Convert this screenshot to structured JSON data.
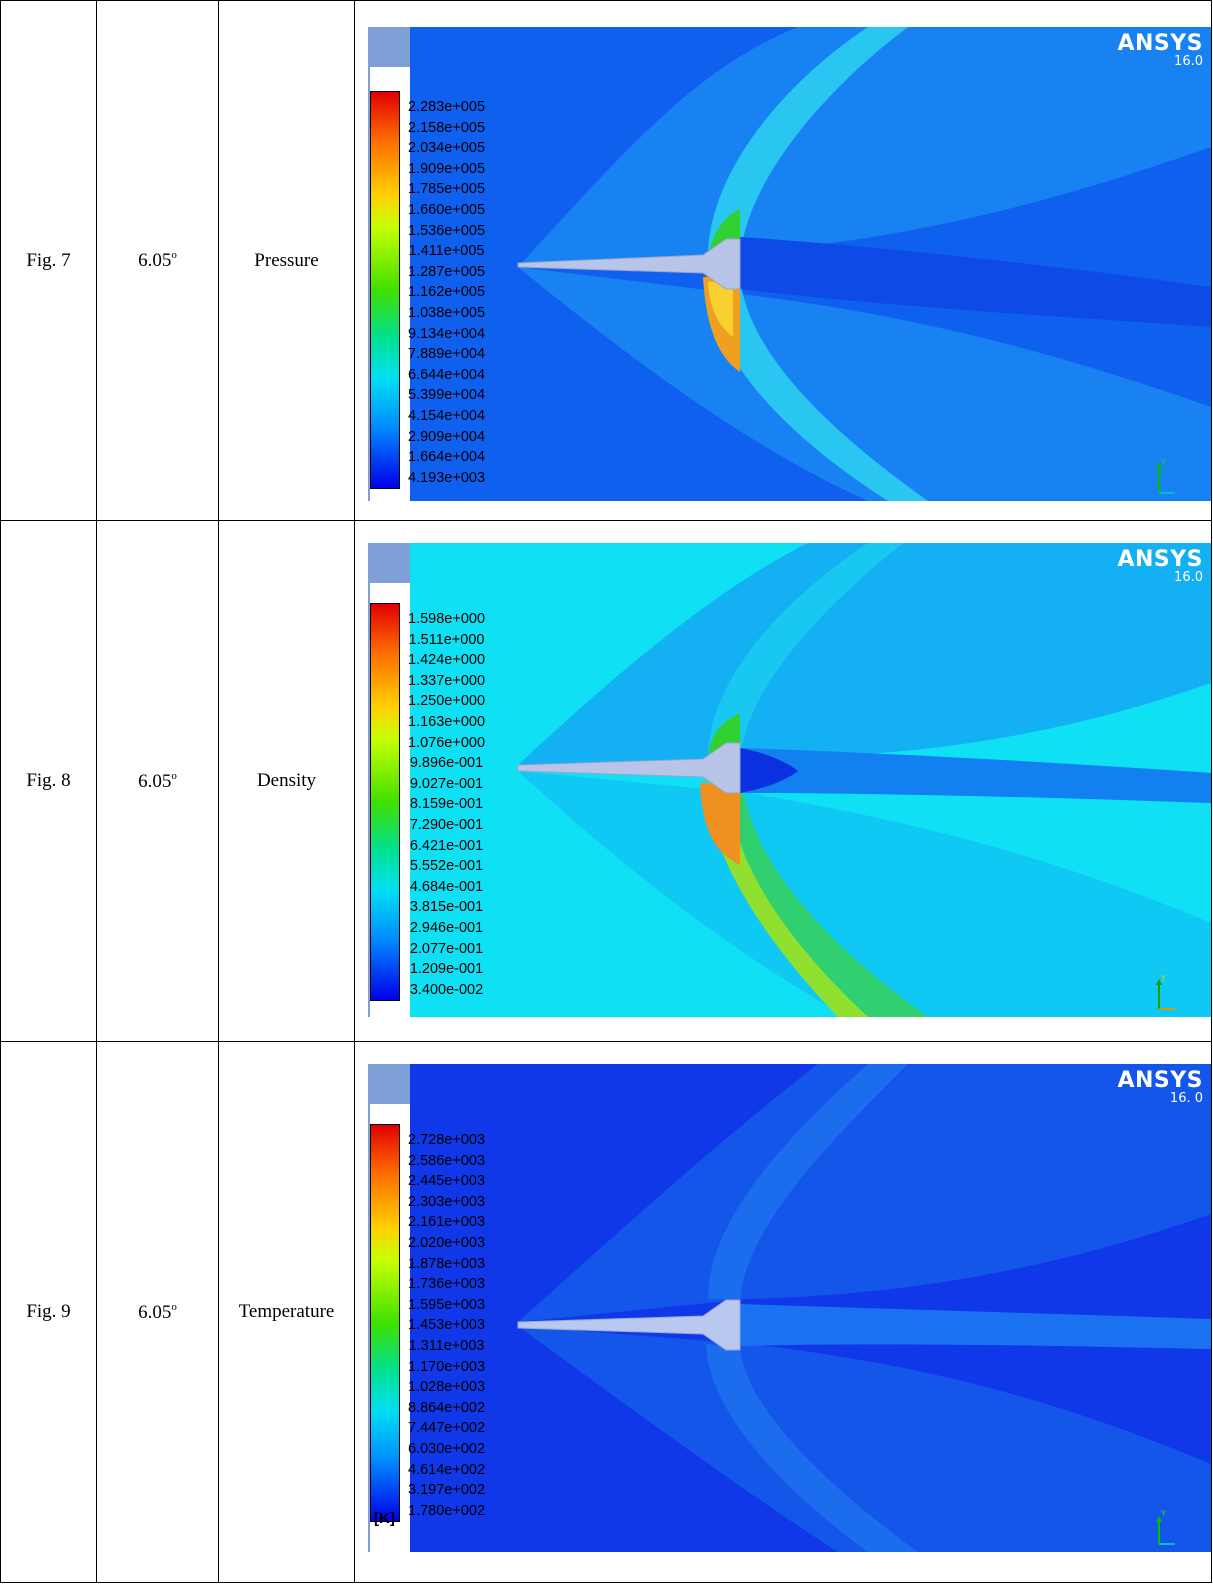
{
  "rows": [
    {
      "fig_label": "Fig. 7",
      "angle_value": "6.05",
      "angle_unit": "o",
      "property": "Pressure",
      "plot": {
        "brand": "ANSYS",
        "version": "16.0",
        "axis_label": "Y",
        "background": "#1060f0",
        "unit": "",
        "levels": [
          "2.283e+005",
          "2.158e+005",
          "2.034e+005",
          "1.909e+005",
          "1.785e+005",
          "1.660e+005",
          "1.536e+005",
          "1.411e+005",
          "1.287e+005",
          "1.162e+005",
          "1.038e+005",
          "9.134e+004",
          "7.889e+004",
          "6.644e+004",
          "5.399e+004",
          "4.154e+004",
          "2.909e+004",
          "1.664e+004",
          "4.193e+003"
        ]
      }
    },
    {
      "fig_label": "Fig. 8",
      "angle_value": "6.05",
      "angle_unit": "o",
      "property": "Density",
      "plot": {
        "brand": "ANSYS",
        "version": "16.0",
        "axis_label": "Y",
        "background": "#10e0f4",
        "unit": "",
        "levels": [
          "1.598e+000",
          "1.511e+000",
          "1.424e+000",
          "1.337e+000",
          "1.250e+000",
          "1.163e+000",
          "1.076e+000",
          "9.896e-001",
          "9.027e-001",
          "8.159e-001",
          "7.290e-001",
          "6.421e-001",
          "5.552e-001",
          "4.684e-001",
          "3.815e-001",
          "2.946e-001",
          "2.077e-001",
          "1.209e-001",
          "3.400e-002"
        ]
      }
    },
    {
      "fig_label": "Fig. 9",
      "angle_value": "6.05",
      "angle_unit": "o",
      "property": "Temperature",
      "plot": {
        "brand": "ANSYS",
        "version": "16. 0",
        "axis_label": "Y",
        "background": "#1038e8",
        "unit": "[K]",
        "levels": [
          "2.728e+003",
          "2.586e+003",
          "2.445e+003",
          "2.303e+003",
          "2.161e+003",
          "2.020e+003",
          "1.878e+003",
          "1.736e+003",
          "1.595e+003",
          "1.453e+003",
          "1.311e+003",
          "1.170e+003",
          "1.028e+003",
          "8.864e+002",
          "7.447e+002",
          "6.030e+002",
          "4.614e+002",
          "3.197e+002",
          "1.780e+002"
        ]
      }
    }
  ]
}
